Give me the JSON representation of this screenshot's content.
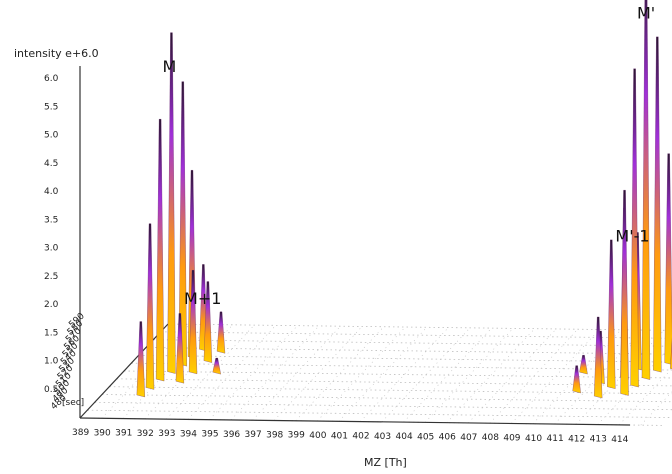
{
  "chart_data": {
    "type": "3d-spectrum",
    "title": "",
    "xlabel": "MZ [Th]",
    "ylabel": "intensity e+6.0",
    "zlabel": "[sec]",
    "xlim": [
      389,
      414.5
    ],
    "ylim": [
      0,
      6.2
    ],
    "x_ticks": [
      389,
      390,
      391,
      392,
      393,
      394,
      395,
      396,
      397,
      398,
      399,
      400,
      401,
      402,
      403,
      404,
      405,
      406,
      407,
      408,
      409,
      410,
      411,
      412,
      413,
      414
    ],
    "y_ticks": [
      "0.5",
      "1.0",
      "1.5",
      "2.0",
      "2.5",
      "3.0",
      "3.5",
      "4.0",
      "4.5",
      "5.0",
      "5.5",
      "6.0"
    ],
    "y_tick_values": [
      0.5,
      1.0,
      1.5,
      2.0,
      2.5,
      3.0,
      3.5,
      4.0,
      4.5,
      5.0,
      5.5,
      6.0
    ],
    "depth_ticks": [
      "590",
      "580",
      "570",
      "560",
      "550",
      "540",
      "530",
      "520",
      "510",
      "500",
      "490",
      "480"
    ],
    "annotations": [
      {
        "label": "M",
        "mz": 391.2,
        "intensity": 6.05
      },
      {
        "label": "M+1",
        "mz": 392.2,
        "intensity": 1.95
      },
      {
        "label": "M'-1",
        "mz": 412.2,
        "intensity": 3.05
      },
      {
        "label": "M'",
        "mz": 413.2,
        "intensity": 7.0
      }
    ],
    "peaks": [
      {
        "mz": 391.2,
        "intensity": 6.0,
        "depth": 0.5
      },
      {
        "mz": 391.0,
        "intensity": 4.6,
        "depth": 0.42
      },
      {
        "mz": 391.4,
        "intensity": 5.0,
        "depth": 0.58
      },
      {
        "mz": 390.9,
        "intensity": 2.9,
        "depth": 0.33
      },
      {
        "mz": 391.5,
        "intensity": 3.3,
        "depth": 0.66
      },
      {
        "mz": 390.8,
        "intensity": 1.3,
        "depth": 0.25
      },
      {
        "mz": 391.7,
        "intensity": 1.5,
        "depth": 0.74
      },
      {
        "mz": 392.2,
        "intensity": 1.8,
        "depth": 0.5
      },
      {
        "mz": 392.0,
        "intensity": 1.2,
        "depth": 0.4
      },
      {
        "mz": 392.4,
        "intensity": 1.4,
        "depth": 0.62
      },
      {
        "mz": 392.6,
        "intensity": 0.7,
        "depth": 0.72
      },
      {
        "mz": 412.2,
        "intensity": 3.0,
        "depth": 0.5
      },
      {
        "mz": 412.0,
        "intensity": 2.6,
        "depth": 0.4
      },
      {
        "mz": 412.4,
        "intensity": 2.4,
        "depth": 0.6
      },
      {
        "mz": 411.8,
        "intensity": 1.4,
        "depth": 0.3
      },
      {
        "mz": 411.3,
        "intensity": 0.9,
        "depth": 0.45
      },
      {
        "mz": 413.2,
        "intensity": 7.2,
        "depth": 0.5
      },
      {
        "mz": 413.0,
        "intensity": 5.6,
        "depth": 0.42
      },
      {
        "mz": 413.4,
        "intensity": 5.9,
        "depth": 0.58
      },
      {
        "mz": 412.9,
        "intensity": 3.6,
        "depth": 0.33
      },
      {
        "mz": 413.6,
        "intensity": 3.7,
        "depth": 0.66
      },
      {
        "mz": 413.8,
        "intensity": 1.5,
        "depth": 0.74
      },
      {
        "mz": 414.1,
        "intensity": 0.8,
        "depth": 0.6
      },
      {
        "mz": 410.1,
        "intensity": 0.3,
        "depth": 0.55
      },
      {
        "mz": 410.6,
        "intensity": 0.45,
        "depth": 0.35
      },
      {
        "mz": 393.3,
        "intensity": 0.25,
        "depth": 0.5
      }
    ],
    "colors": {
      "low": "#ffd000",
      "mid": "#ff7a1a",
      "high": "#a030d8",
      "top": "#2a1530",
      "grid": "#bdbdbd",
      "axis": "#333333"
    }
  }
}
